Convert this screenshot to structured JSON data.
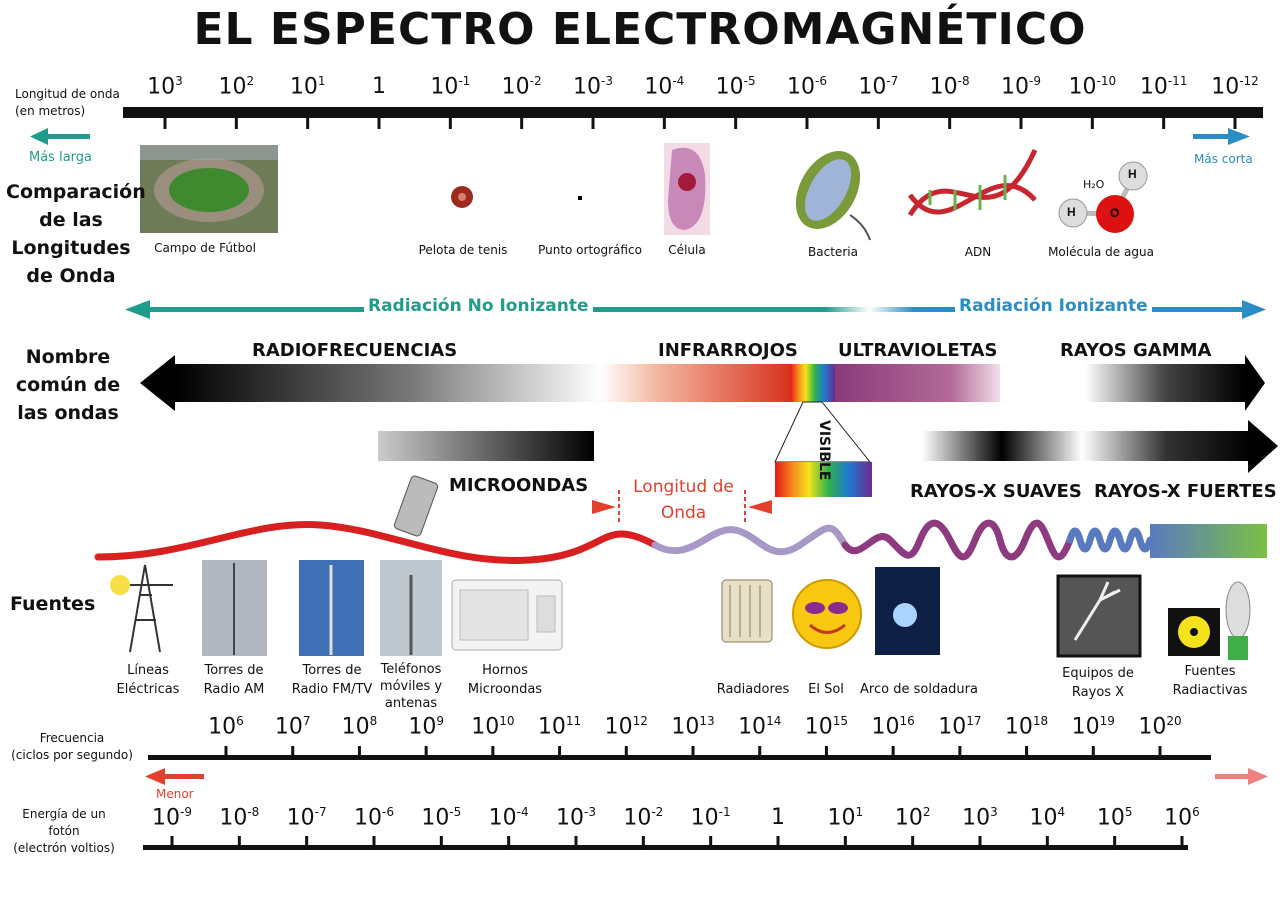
{
  "title": "EL ESPECTRO ELECTROMAGNÉTICO",
  "wavelength": {
    "label_line1": "Longitud de onda",
    "label_line2": "(en metros)",
    "ticks": [
      {
        "base": "10",
        "exp": "3"
      },
      {
        "base": "10",
        "exp": "2"
      },
      {
        "base": "10",
        "exp": "1"
      },
      {
        "base": "1",
        "exp": ""
      },
      {
        "base": "10",
        "exp": "-1"
      },
      {
        "base": "10",
        "exp": "-2"
      },
      {
        "base": "10",
        "exp": "-3"
      },
      {
        "base": "10",
        "exp": "-4"
      },
      {
        "base": "10",
        "exp": "-5"
      },
      {
        "base": "10",
        "exp": "-6"
      },
      {
        "base": "10",
        "exp": "-7"
      },
      {
        "base": "10",
        "exp": "-8"
      },
      {
        "base": "10",
        "exp": "-9"
      },
      {
        "base": "10",
        "exp": "-10"
      },
      {
        "base": "10",
        "exp": "-11"
      },
      {
        "base": "10",
        "exp": "-12"
      }
    ],
    "longer": "Más larga",
    "shorter": "Más corta"
  },
  "comparison": {
    "label": "Comparación de las Longitudes de Onda",
    "items": [
      "Campo de Fútbol",
      "Pelota de tenis",
      "Punto ortográfico",
      "Célula",
      "Bacteria",
      "ADN",
      "Molécula de agua"
    ],
    "water_h2o": "H₂O",
    "water_h": "H",
    "water_o": "O"
  },
  "radiation": {
    "non_ionizing": "Radiación No Ionizante",
    "ionizing": "Radiación Ionizante"
  },
  "common_name": {
    "label": "Nombre común de las ondas",
    "bands": {
      "radio": "RADIOFRECUENCIAS",
      "infrared": "INFRARROJOS",
      "ultraviolet": "ULTRAVIOLETAS",
      "gamma": "RAYOS GAMMA",
      "visible": "VISIBLE",
      "microwave": "MICROONDAS",
      "soft_xray": "RAYOS-X SUAVES",
      "hard_xray": "RAYOS-X FUERTES",
      "wavelength_line1": "Longitud de",
      "wavelength_line2": "Onda"
    }
  },
  "sources": {
    "label": "Fuentes",
    "items": [
      {
        "l1": "Líneas",
        "l2": "Eléctricas",
        "l3": ""
      },
      {
        "l1": "Torres de",
        "l2": "Radio AM",
        "l3": ""
      },
      {
        "l1": "Torres de",
        "l2": "Radio FM/TV",
        "l3": ""
      },
      {
        "l1": "Teléfonos",
        "l2": "móviles y",
        "l3": "antenas"
      },
      {
        "l1": "Hornos",
        "l2": "Microondas",
        "l3": ""
      },
      {
        "l1": "Radiadores",
        "l2": "",
        "l3": ""
      },
      {
        "l1": "El Sol",
        "l2": "",
        "l3": ""
      },
      {
        "l1": "Arco de soldadura",
        "l2": "",
        "l3": ""
      },
      {
        "l1": "Equipos de",
        "l2": "Rayos X",
        "l3": ""
      },
      {
        "l1": "Fuentes",
        "l2": "Radiactivas",
        "l3": ""
      }
    ]
  },
  "frequency": {
    "label_line1": "Frecuencia",
    "label_line2": "(ciclos por segundo)",
    "ticks": [
      {
        "base": "10",
        "exp": "6"
      },
      {
        "base": "10",
        "exp": "7"
      },
      {
        "base": "10",
        "exp": "8"
      },
      {
        "base": "10",
        "exp": "9"
      },
      {
        "base": "10",
        "exp": "10"
      },
      {
        "base": "10",
        "exp": "11"
      },
      {
        "base": "10",
        "exp": "12"
      },
      {
        "base": "10",
        "exp": "13"
      },
      {
        "base": "10",
        "exp": "14"
      },
      {
        "base": "10",
        "exp": "15"
      },
      {
        "base": "10",
        "exp": "16"
      },
      {
        "base": "10",
        "exp": "17"
      },
      {
        "base": "10",
        "exp": "18"
      },
      {
        "base": "10",
        "exp": "19"
      },
      {
        "base": "10",
        "exp": "20"
      }
    ],
    "lower": "Menor"
  },
  "energy": {
    "label_line1": "Energía de un",
    "label_line2": "fotón",
    "label_line3": "(electrón voltios)",
    "ticks": [
      {
        "base": "10",
        "exp": "-9"
      },
      {
        "base": "10",
        "exp": "-8"
      },
      {
        "base": "10",
        "exp": "-7"
      },
      {
        "base": "10",
        "exp": "-6"
      },
      {
        "base": "10",
        "exp": "-5"
      },
      {
        "base": "10",
        "exp": "-4"
      },
      {
        "base": "10",
        "exp": "-3"
      },
      {
        "base": "10",
        "exp": "-2"
      },
      {
        "base": "10",
        "exp": "-1"
      },
      {
        "base": "1",
        "exp": ""
      },
      {
        "base": "10",
        "exp": "1"
      },
      {
        "base": "10",
        "exp": "2"
      },
      {
        "base": "10",
        "exp": "3"
      },
      {
        "base": "10",
        "exp": "4"
      },
      {
        "base": "10",
        "exp": "5"
      },
      {
        "base": "10",
        "exp": "6"
      }
    ]
  },
  "colors": {
    "teal": "#1f9c8c",
    "blue": "#2a8ec4",
    "red": "#e2402c",
    "wave_radio": "#d92020",
    "wave_ir": "#a898c8",
    "wave_uv": "#8e3a7e",
    "wave_xray": "#5a7ac0"
  }
}
